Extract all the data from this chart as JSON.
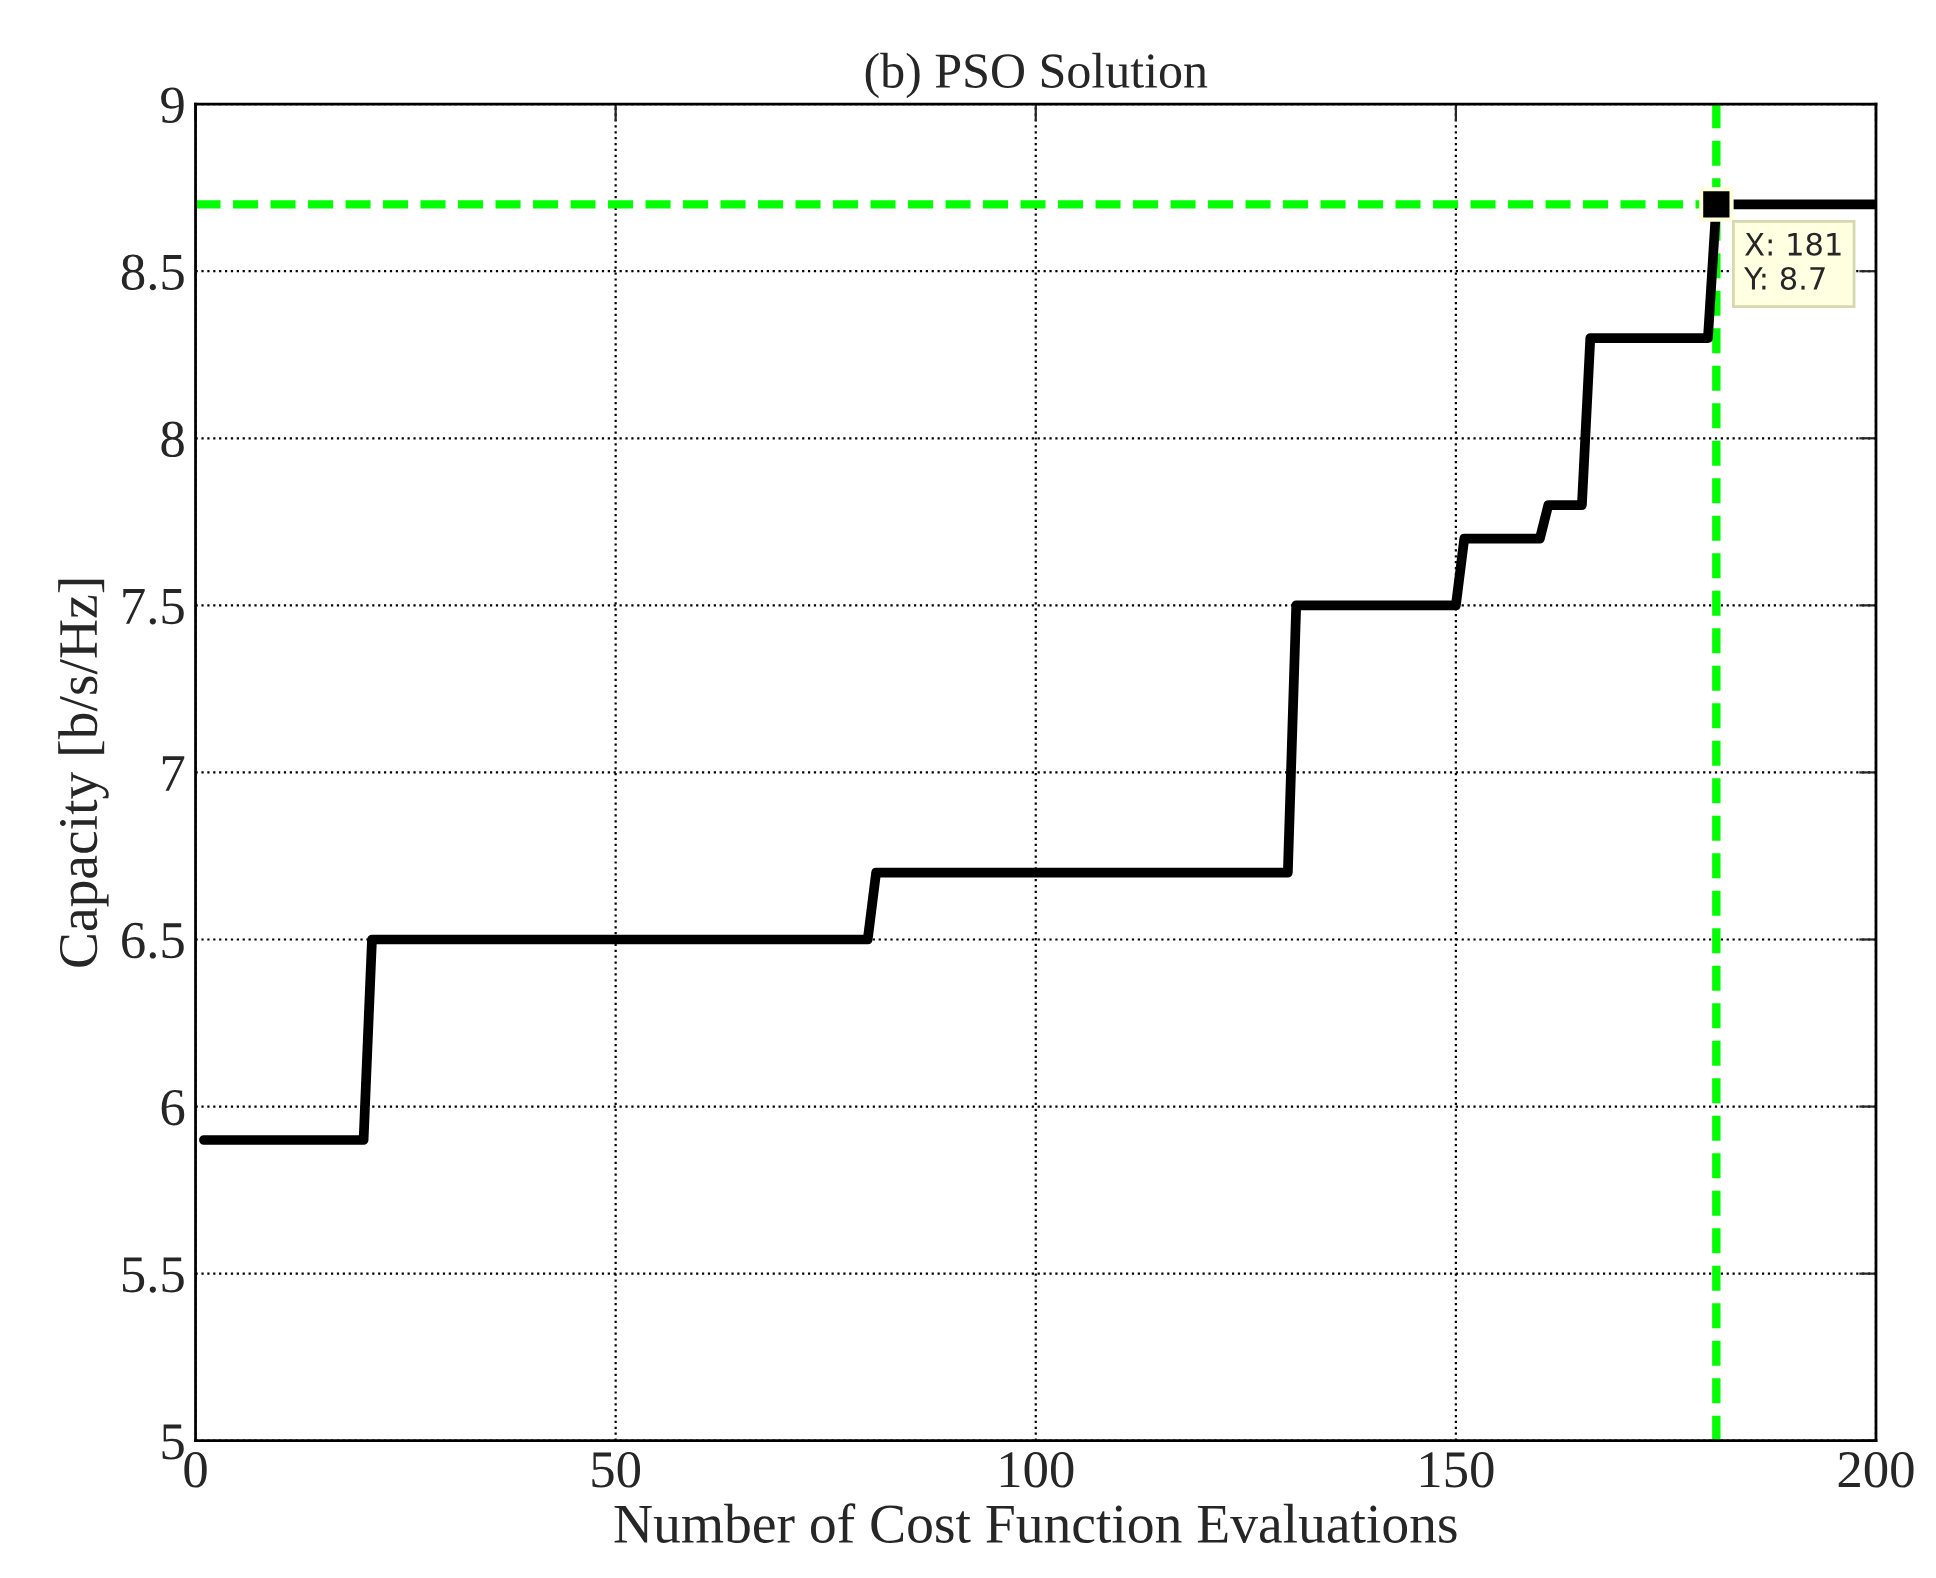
{
  "chart_data": {
    "type": "line",
    "title": "(b) PSO Solution",
    "xlabel": "Number of Cost Function Evaluations",
    "ylabel": "Capacity [b/s/Hz]",
    "series": [
      {
        "color": "#000000",
        "x": [
          1,
          20,
          21,
          80,
          81,
          130,
          131,
          150,
          151,
          160,
          161,
          165,
          166,
          180,
          181,
          200
        ],
        "values": [
          5.9,
          5.9,
          6.5,
          6.5,
          6.7,
          6.7,
          7.5,
          7.5,
          7.7,
          7.7,
          7.8,
          7.8,
          8.3,
          8.3,
          8.7,
          8.7
        ]
      },
      {
        "type": "scatter",
        "color": "#000000",
        "marker": "square",
        "x": [
          181
        ],
        "values": [
          8.7
        ]
      }
    ],
    "xlim": [
      0,
      200
    ],
    "xticks": [
      0,
      50,
      100,
      150,
      200
    ],
    "ylim": [
      5,
      9
    ],
    "yticks": [
      5,
      5.5,
      6,
      6.5,
      7,
      7.5,
      8,
      8.5,
      9
    ],
    "grid": true,
    "line_style": "solid",
    "marker": "none",
    "ref_lines": [
      {
        "axis": "y",
        "value": 8.7,
        "color": "#00ff00",
        "line_style": "dashed"
      },
      {
        "axis": "x",
        "value": 181,
        "color": "#00ff00",
        "line_style": "dashed"
      }
    ],
    "annotations": [
      {
        "text": "X: 181\nY: 8.7",
        "x": 181,
        "y": 8.7
      }
    ]
  }
}
